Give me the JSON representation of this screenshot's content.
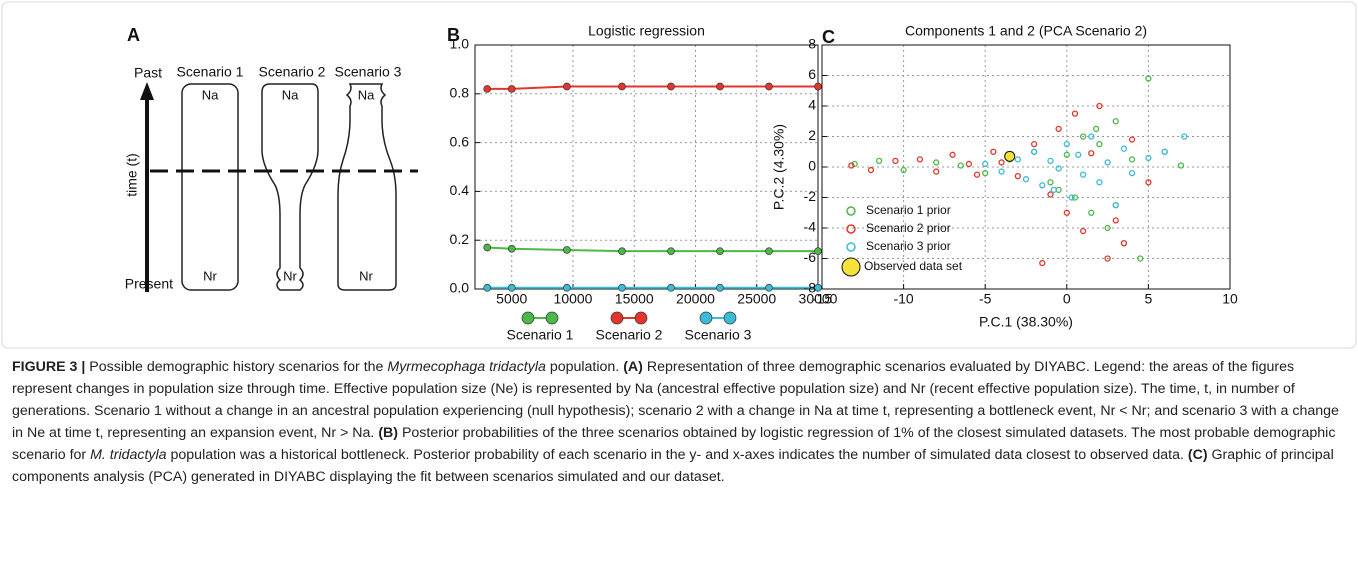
{
  "diagram": {
    "label": "A",
    "past": "Past",
    "present": "Present",
    "time_axis": "time (t)",
    "scenarios": [
      {
        "name": "Scenario 1",
        "top": "Na",
        "bottom": "Nr"
      },
      {
        "name": "Scenario 2",
        "top": "Na",
        "bottom": "Nr"
      },
      {
        "name": "Scenario 3",
        "top": "Na",
        "bottom": "Nr"
      }
    ]
  },
  "chart_data": [
    {
      "panel_label": "B",
      "type": "line",
      "title": "Logistic regression",
      "x": [
        3000,
        5000,
        9500,
        14000,
        18000,
        22000,
        26000,
        30000
      ],
      "series": [
        {
          "name": "Scenario 1",
          "color": "#4cb848",
          "values": [
            0.17,
            0.165,
            0.16,
            0.155,
            0.155,
            0.155,
            0.155,
            0.155
          ]
        },
        {
          "name": "Scenario 2",
          "color": "#e2362c",
          "values": [
            0.82,
            0.82,
            0.83,
            0.83,
            0.83,
            0.83,
            0.83,
            0.83
          ]
        },
        {
          "name": "Scenario 3",
          "color": "#3bbcd6",
          "values": [
            0.005,
            0.005,
            0.005,
            0.005,
            0.005,
            0.005,
            0.005,
            0.005
          ]
        }
      ],
      "xlim": [
        2000,
        30000
      ],
      "xticks": [
        5000,
        10000,
        15000,
        20000,
        25000,
        30000
      ],
      "ylim": [
        0,
        1
      ],
      "yticks": [
        {
          "value": 0,
          "label": "0.0"
        },
        0.2,
        0.4,
        0.6,
        0.8,
        {
          "value": 1,
          "label": "1.0"
        }
      ],
      "grid": true
    },
    {
      "panel_label": "C",
      "type": "scatter",
      "title": "Components 1 and 2 (PCA Scenario 2)",
      "x_label": "P.C.1 (38.30%)",
      "y_label": "P.C.2 (4.30%)",
      "series": [
        {
          "name": "Scenario 1 prior",
          "color": "#4cb848",
          "x": [
            -13,
            -11.5,
            -10,
            -8,
            -6.5,
            -5,
            -3.5,
            -2,
            -1,
            0,
            0.5,
            1,
            1.5,
            2,
            2.5,
            3,
            3.5,
            4,
            4.5,
            5,
            6,
            7,
            3,
            1.8,
            -0.5
          ],
          "y": [
            0.2,
            0.4,
            -0.2,
            0.3,
            0.1,
            -0.4,
            0.5,
            1,
            -1,
            0.8,
            -2,
            2,
            -3,
            1.5,
            -4,
            3,
            -5,
            0.5,
            -6,
            5.8,
            1,
            0.1,
            -2.5,
            2.5,
            -1.5
          ]
        },
        {
          "name": "Scenario 2 prior",
          "color": "#e2362c",
          "x": [
            -13.2,
            -12,
            -10.5,
            -9,
            -8,
            -7,
            -6,
            -5.5,
            -4.5,
            -4,
            -3,
            -2,
            -1,
            -0.5,
            0,
            0.5,
            1,
            2,
            3,
            3.5,
            4,
            5,
            2.5,
            -1.5,
            1.5
          ],
          "y": [
            0.1,
            -0.2,
            0.4,
            0.5,
            -0.3,
            0.8,
            0.2,
            -0.5,
            1,
            0.3,
            -0.6,
            1.5,
            -1.8,
            2.5,
            -3,
            3.5,
            -4.2,
            4,
            -3.5,
            -5,
            1.8,
            -1,
            -6,
            -6.3,
            0.9
          ]
        },
        {
          "name": "Scenario 3 prior",
          "color": "#3bbcd6",
          "x": [
            -5,
            -4,
            -3,
            -2.5,
            -2,
            -1.5,
            -1,
            -0.5,
            0,
            0.3,
            0.7,
            1,
            1.5,
            2,
            2.5,
            3,
            3.5,
            4,
            5,
            6,
            7.2,
            -0.8
          ],
          "y": [
            0.2,
            -0.3,
            0.5,
            -0.8,
            1,
            -1.2,
            0.4,
            -0.1,
            1.5,
            -2,
            0.8,
            -0.5,
            2,
            -1,
            0.3,
            -2.5,
            1.2,
            -0.4,
            0.6,
            1,
            2,
            -1.5
          ]
        },
        {
          "name": "Observed data set",
          "color": "#f4e13a",
          "x": [
            -3.5
          ],
          "y": [
            0.7
          ]
        }
      ],
      "xlim": [
        -15,
        10
      ],
      "xticks": [
        -15,
        -10,
        -5,
        0,
        5,
        10
      ],
      "ylim": [
        -8,
        8
      ],
      "yticks": [
        -8,
        -6,
        -4,
        -2,
        0,
        2,
        4,
        6,
        8
      ],
      "grid": true
    }
  ],
  "caption": {
    "parts": [
      "FIGURE 3 |",
      " Possible demographic history scenarios for the ",
      "Myrmecophaga tridactyla",
      " population. ",
      "(A)",
      " Representation of three demographic scenarios evaluated by DIYABC. Legend: the areas of the figures represent changes in population size through time. Effective population size (Ne) is represented by Na (ancestral effective population size) and Nr (recent effective population size). The time, t, in number of generations. Scenario 1 without a change in an ancestral population experiencing (null hypothesis); scenario 2 with a change in Na at time t, representing a bottleneck event, Nr < Nr; and scenario 3 with a change in Ne at time t, representing an expansion event, Nr > Na. ",
      "(B)",
      " Posterior probabilities of the three scenarios obtained by logistic regression of 1% of the closest simulated datasets. The most probable demographic scenario for ",
      "M. tridactyla",
      " population was a historical bottleneck. Posterior probability of each scenario in the y- and x-axes indicates the number of simulated data closest to observed data. ",
      "(C)",
      " Graphic of principal components analysis (PCA) generated in DIYABC displaying the fit between scenarios simulated and our dataset."
    ]
  }
}
